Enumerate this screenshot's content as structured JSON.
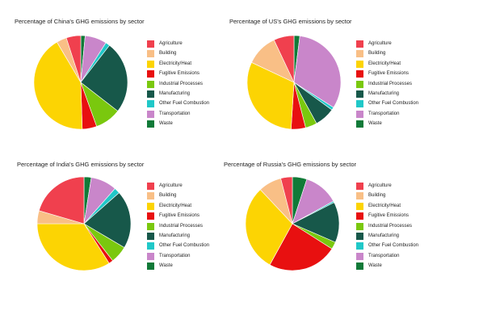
{
  "colors": {
    "Agriculture": "#f0404e",
    "Building": "#f9bf86",
    "Electricity/Heat": "#fcd403",
    "Fugitive Emissions": "#e81010",
    "Industrial Processes": "#7ac80e",
    "Manufacturing": "#17584a",
    "Other Fuel Combustion": "#20c8c8",
    "Transportation": "#c986ca",
    "Waste": "#117a38"
  },
  "chart_data": [
    {
      "type": "pie",
      "title": "Percentage of China's GHG emissions by sector",
      "categories": [
        "Agriculture",
        "Building",
        "Electricity/Heat",
        "Fugitive Emissions",
        "Industrial Processes",
        "Manufacturing",
        "Other Fuel Combustion",
        "Transportation",
        "Waste"
      ],
      "slices": [
        {
          "label": "Waste",
          "value": 1.5
        },
        {
          "label": "Transportation",
          "value": 7.5
        },
        {
          "label": "Other Fuel Combustion",
          "value": 1.5
        },
        {
          "label": "Manufacturing",
          "value": 25
        },
        {
          "label": "Industrial Processes",
          "value": 9
        },
        {
          "label": "Fugitive Emissions",
          "value": 5
        },
        {
          "label": "Electricity/Heat",
          "value": 42
        },
        {
          "label": "Building",
          "value": 3.5
        },
        {
          "label": "Agriculture",
          "value": 5
        }
      ],
      "legend": "right"
    },
    {
      "type": "pie",
      "title": "Percentage of US's GHG emissions by sector",
      "categories": [
        "Agriculture",
        "Building",
        "Electricity/Heat",
        "Fugitive Emissions",
        "Industrial Processes",
        "Manufacturing",
        "Other Fuel Combustion",
        "Transportation",
        "Waste"
      ],
      "slices": [
        {
          "label": "Waste",
          "value": 2
        },
        {
          "label": "Transportation",
          "value": 32
        },
        {
          "label": "Other Fuel Combustion",
          "value": 1
        },
        {
          "label": "Manufacturing",
          "value": 7
        },
        {
          "label": "Industrial Processes",
          "value": 4
        },
        {
          "label": "Fugitive Emissions",
          "value": 5
        },
        {
          "label": "Electricity/Heat",
          "value": 31
        },
        {
          "label": "Building",
          "value": 11
        },
        {
          "label": "Agriculture",
          "value": 7
        }
      ],
      "legend": "right"
    },
    {
      "type": "pie",
      "title": "Percentage of India's GHG emissions by sector",
      "categories": [
        "Agriculture",
        "Building",
        "Electricity/Heat",
        "Fugitive Emissions",
        "Industrial Processes",
        "Manufacturing",
        "Other Fuel Combustion",
        "Transportation",
        "Waste"
      ],
      "slices": [
        {
          "label": "Waste",
          "value": 2.5
        },
        {
          "label": "Transportation",
          "value": 9
        },
        {
          "label": "Other Fuel Combustion",
          "value": 2
        },
        {
          "label": "Manufacturing",
          "value": 20
        },
        {
          "label": "Industrial Processes",
          "value": 6
        },
        {
          "label": "Fugitive Emissions",
          "value": 1.5
        },
        {
          "label": "Electricity/Heat",
          "value": 34
        },
        {
          "label": "Building",
          "value": 4.5
        },
        {
          "label": "Agriculture",
          "value": 20.5
        }
      ],
      "legend": "right"
    },
    {
      "type": "pie",
      "title": "Percentage of Russia's GHG emissions by sector",
      "categories": [
        "Agriculture",
        "Building",
        "Electricity/Heat",
        "Fugitive Emissions",
        "Industrial Processes",
        "Manufacturing",
        "Other Fuel Combustion",
        "Transportation",
        "Waste"
      ],
      "slices": [
        {
          "label": "Waste",
          "value": 5
        },
        {
          "label": "Transportation",
          "value": 12
        },
        {
          "label": "Other Fuel Combustion",
          "value": 0.5
        },
        {
          "label": "Manufacturing",
          "value": 14
        },
        {
          "label": "Industrial Processes",
          "value": 2.5
        },
        {
          "label": "Fugitive Emissions",
          "value": 24
        },
        {
          "label": "Electricity/Heat",
          "value": 30
        },
        {
          "label": "Building",
          "value": 8
        },
        {
          "label": "Agriculture",
          "value": 4
        }
      ],
      "legend": "right"
    }
  ]
}
